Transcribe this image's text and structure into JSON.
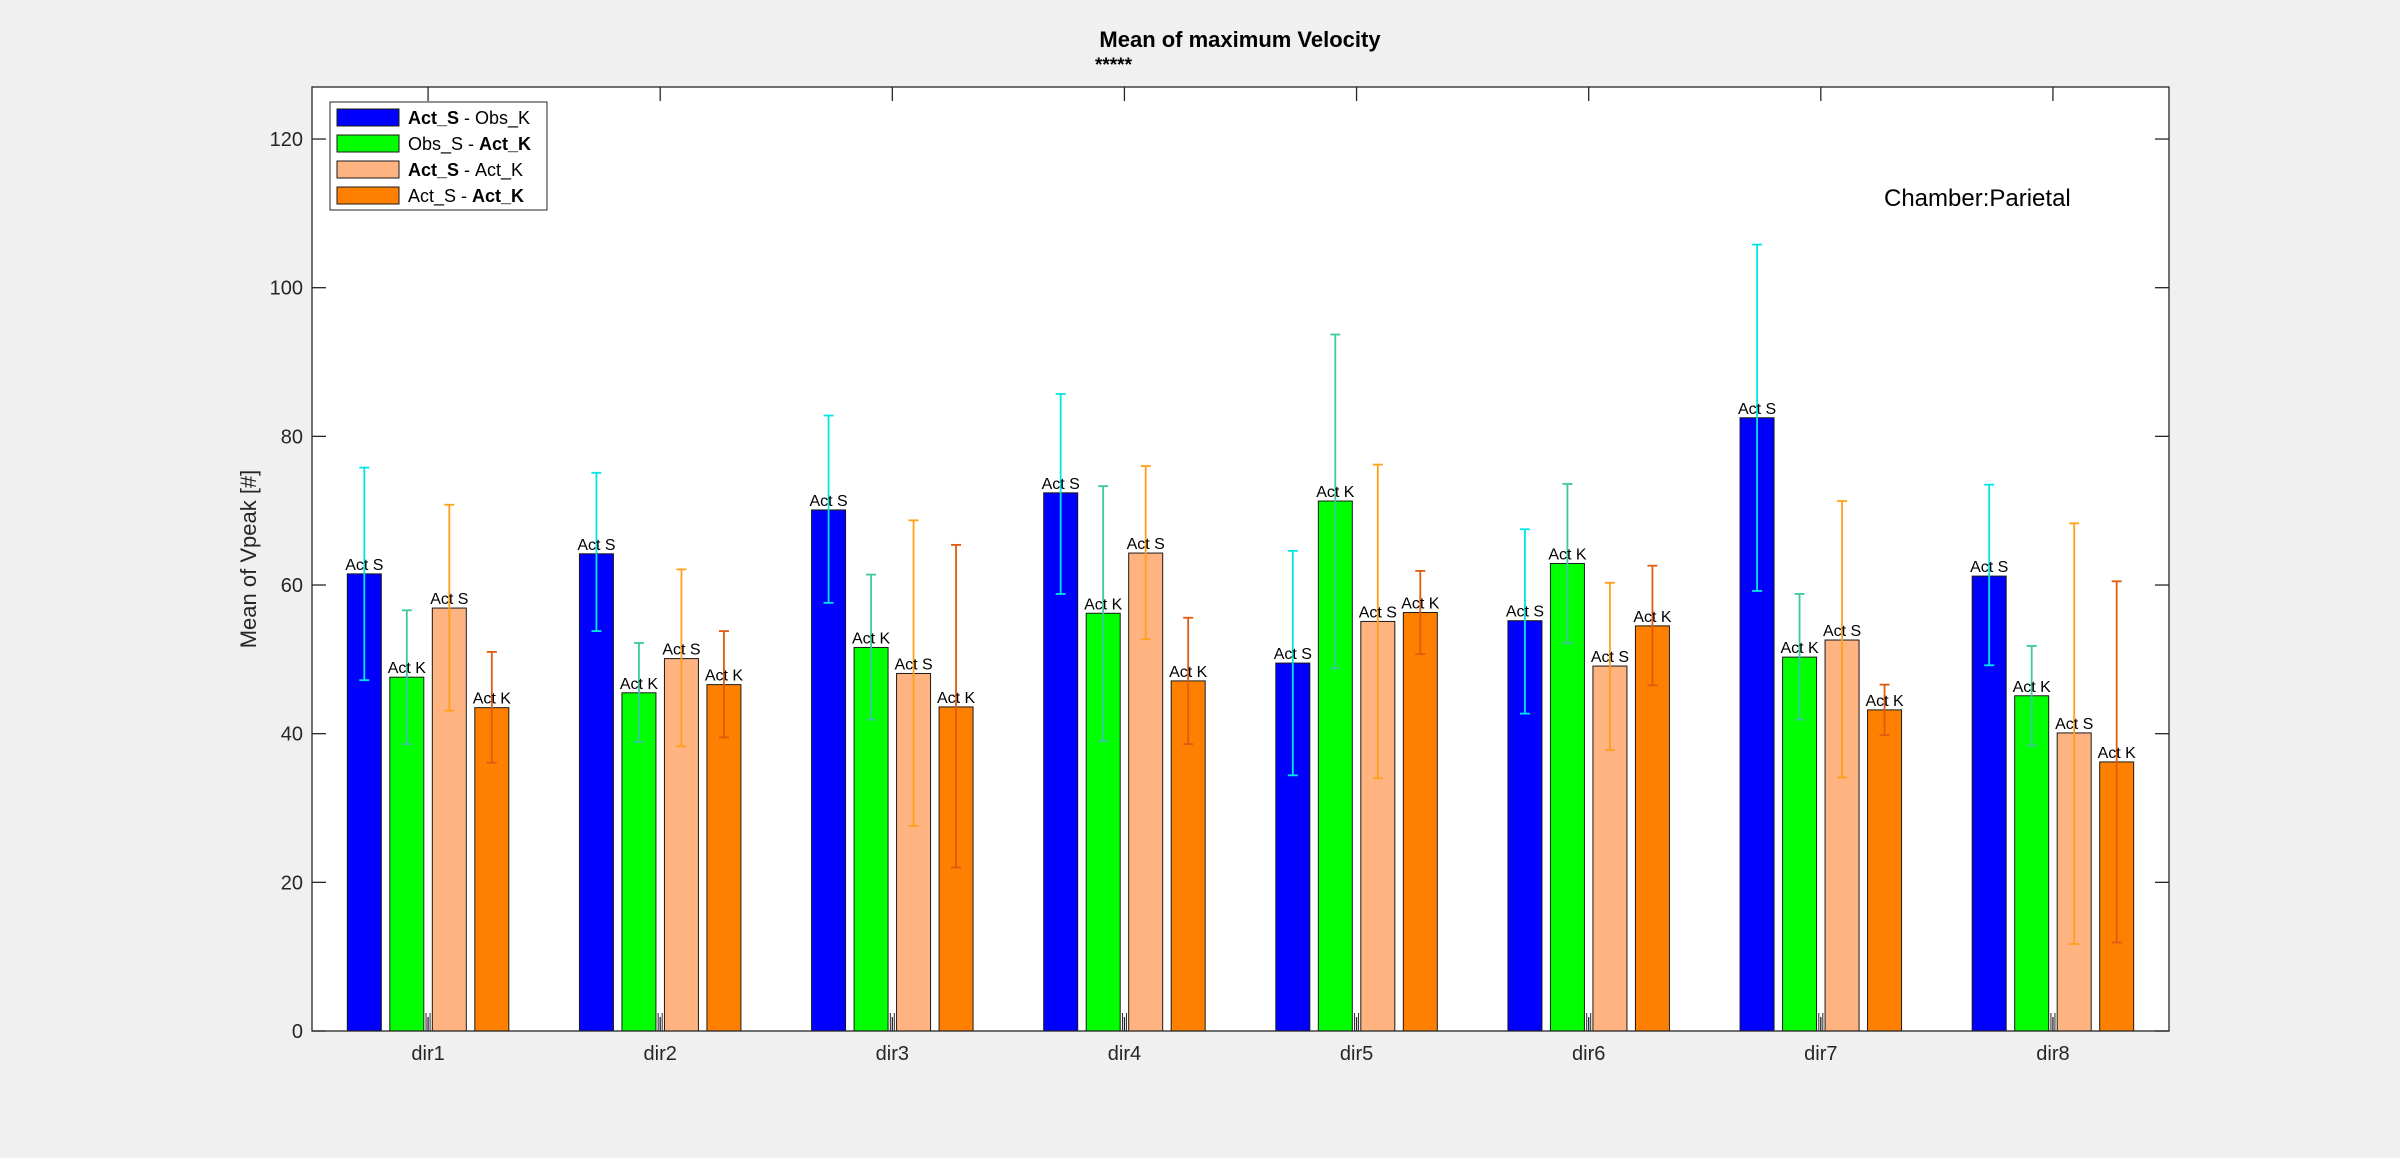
{
  "chart_data": {
    "type": "bar",
    "title": "Mean of maximum Velocity",
    "subtitle": "*****",
    "ylabel": "Mean of Vpeak [#]",
    "xlabel": "",
    "ylim": [
      0,
      127
    ],
    "yticks": [
      0,
      20,
      40,
      60,
      80,
      100,
      120
    ],
    "grid": false,
    "legend_position": "top-left",
    "annotation": "Chamber:Parietal",
    "categories": [
      "dir1",
      "dir2",
      "dir3",
      "dir4",
      "dir5",
      "dir6",
      "dir7",
      "dir8"
    ],
    "series": [
      {
        "name": "Act_S - Obs_K",
        "legend_parts": [
          {
            "text": "Act_S",
            "bold": true
          },
          {
            "text": " - Obs_K",
            "bold": false
          }
        ],
        "color": "#0000ff",
        "error_color": "#00e5e5",
        "values": [
          61.5,
          64.2,
          70.1,
          72.4,
          49.5,
          55.2,
          82.5,
          61.2
        ],
        "err_low": [
          47.2,
          53.8,
          57.6,
          58.8,
          34.4,
          42.7,
          59.2,
          49.2
        ],
        "err_high": [
          75.8,
          75.1,
          82.8,
          85.7,
          64.6,
          67.5,
          105.8,
          73.5
        ],
        "bar_labels": [
          "Act S",
          "Act S",
          "Act S",
          "Act S",
          "Act S",
          "Act S",
          "Act S",
          "Act S"
        ]
      },
      {
        "name": "Obs_S - Act_K",
        "legend_parts": [
          {
            "text": "Obs_S - ",
            "bold": false
          },
          {
            "text": "Act_K",
            "bold": true
          }
        ],
        "color": "#00ff00",
        "error_color": "#3cc8a0",
        "values": [
          47.6,
          45.5,
          51.6,
          56.2,
          71.3,
          62.9,
          50.3,
          45.1
        ],
        "err_low": [
          38.6,
          38.9,
          41.9,
          39.0,
          48.8,
          52.2,
          41.9,
          38.4
        ],
        "err_high": [
          56.6,
          52.2,
          61.4,
          73.3,
          93.7,
          73.6,
          58.8,
          51.8
        ],
        "bar_labels": [
          "Act K",
          "Act K",
          "Act K",
          "Act K",
          "Act K",
          "Act K",
          "Act K",
          "Act K"
        ]
      },
      {
        "name": "Act_S - Act_K",
        "legend_parts": [
          {
            "text": "Act_S",
            "bold": true
          },
          {
            "text": " - Act_K",
            "bold": false
          }
        ],
        "color": "#ffb380",
        "error_color": "#ff9f1a",
        "values": [
          56.9,
          50.1,
          48.1,
          64.3,
          55.1,
          49.1,
          52.6,
          40.1
        ],
        "err_low": [
          43.1,
          38.3,
          27.6,
          52.7,
          34.0,
          37.8,
          34.1,
          11.7
        ],
        "err_high": [
          70.8,
          62.1,
          68.7,
          76.0,
          76.2,
          60.3,
          71.3,
          68.3
        ],
        "bar_labels": [
          "Act S",
          "Act S",
          "Act S",
          "Act S",
          "Act S",
          "Act S",
          "Act S",
          "Act S"
        ]
      },
      {
        "name": "Act_S - Act_K",
        "legend_parts": [
          {
            "text": "Act_S - ",
            "bold": false
          },
          {
            "text": "Act_K",
            "bold": true
          }
        ],
        "color": "#ff8000",
        "error_color": "#e05a10",
        "values": [
          43.5,
          46.6,
          43.6,
          47.1,
          56.3,
          54.5,
          43.2,
          36.2
        ],
        "err_low": [
          36.1,
          39.5,
          22.0,
          38.6,
          50.7,
          46.5,
          39.8,
          11.9
        ],
        "err_high": [
          51.0,
          53.8,
          65.4,
          55.6,
          61.9,
          62.6,
          46.6,
          60.5
        ],
        "bar_labels": [
          "Act K",
          "Act K",
          "Act K",
          "Act K",
          "Act K",
          "Act K",
          "Act K",
          "Act K"
        ]
      }
    ]
  }
}
